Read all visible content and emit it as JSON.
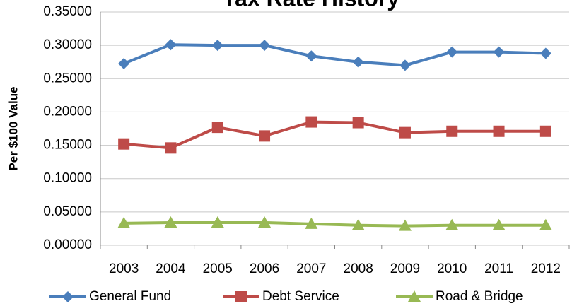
{
  "chart_data": {
    "type": "line",
    "title": "Tax Rate History",
    "y_label": "Per $100 Value",
    "categories": [
      "2003",
      "2004",
      "2005",
      "2006",
      "2007",
      "2008",
      "2009",
      "2010",
      "2011",
      "2012"
    ],
    "series": [
      {
        "name": "General Fund",
        "color": "#4a7ebb",
        "marker": "diamond",
        "values": [
          0.2726,
          0.301,
          0.3,
          0.3,
          0.284,
          0.275,
          0.27,
          0.29,
          0.29,
          0.288
        ]
      },
      {
        "name": "Debt Service",
        "color": "#be4b48",
        "marker": "square",
        "values": [
          0.152,
          0.146,
          0.177,
          0.164,
          0.185,
          0.184,
          0.169,
          0.171,
          0.171,
          0.171
        ]
      },
      {
        "name": "Road & Bridge",
        "color": "#98b954",
        "marker": "triangle",
        "values": [
          0.033,
          0.034,
          0.034,
          0.034,
          0.032,
          0.03,
          0.029,
          0.03,
          0.03,
          0.03
        ]
      }
    ],
    "ylim": [
      0,
      0.35
    ],
    "yticks": [
      {
        "value": 0,
        "label": "0.00000"
      },
      {
        "value": 0.05,
        "label": "0.05000"
      },
      {
        "value": 0.1,
        "label": "0.10000"
      },
      {
        "value": 0.15,
        "label": "0.15000"
      },
      {
        "value": 0.2,
        "label": "0.20000"
      },
      {
        "value": 0.25,
        "label": "0.25000"
      },
      {
        "value": 0.3,
        "label": "0.30000"
      },
      {
        "value": 0.35,
        "label": "0.35000"
      }
    ],
    "grid": true,
    "legend": "bottom"
  }
}
